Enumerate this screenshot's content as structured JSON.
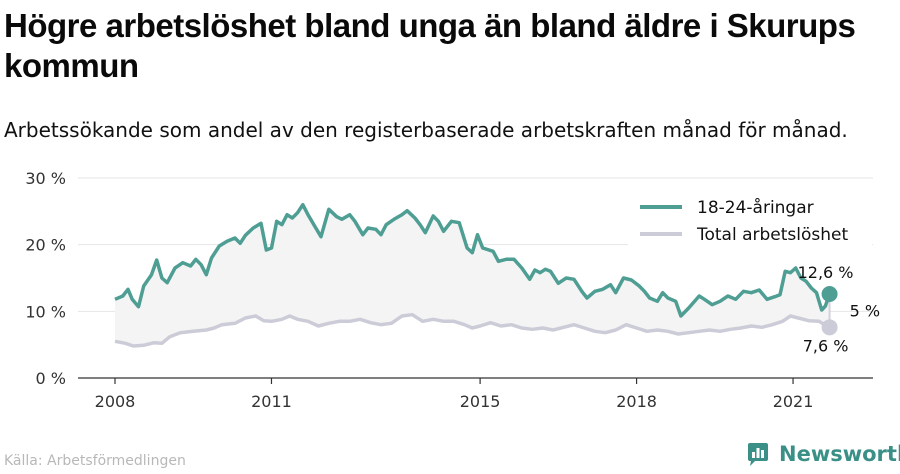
{
  "title": "Högre arbetslöshet bland unga än bland äldre i Skurups kommun",
  "subtitle": "Arbetssökande som andel av den registerbaserade arbetskraften månad för månad.",
  "source": "Källa: Arbetsförmedlingen",
  "brand": "Newsworthy",
  "colors": {
    "youth": "#4f9e94",
    "total": "#ccccd8",
    "gap_fill": "#f4f4f4",
    "grid": "#e6e6e6"
  },
  "icons": {
    "brand": "newsworthy-logo-icon"
  },
  "chart_data": {
    "type": "line",
    "xlim": [
      2008,
      2021.9
    ],
    "ylim": [
      0,
      30
    ],
    "xticks": [
      2008,
      2011,
      2015,
      2018,
      2021
    ],
    "xtick_labels": [
      "2008",
      "2011",
      "2015",
      "2018",
      "2021"
    ],
    "yticks": [
      0,
      10,
      20,
      30
    ],
    "ytick_labels": [
      "0 %",
      "10 %",
      "20 %",
      "30 %"
    ],
    "legend_position": "top-right",
    "grid": "horizontal",
    "series": [
      {
        "name": "18-24-åringar",
        "color": "#4f9e94",
        "points": [
          [
            2008.0,
            11.8
          ],
          [
            2008.15,
            12.3
          ],
          [
            2008.25,
            13.3
          ],
          [
            2008.33,
            11.8
          ],
          [
            2008.45,
            10.7
          ],
          [
            2008.55,
            13.8
          ],
          [
            2008.7,
            15.5
          ],
          [
            2008.8,
            17.7
          ],
          [
            2008.9,
            15.0
          ],
          [
            2009.0,
            14.3
          ],
          [
            2009.15,
            16.5
          ],
          [
            2009.3,
            17.3
          ],
          [
            2009.45,
            16.8
          ],
          [
            2009.55,
            17.8
          ],
          [
            2009.65,
            17.0
          ],
          [
            2009.75,
            15.5
          ],
          [
            2009.85,
            18.0
          ],
          [
            2010.0,
            19.8
          ],
          [
            2010.15,
            20.5
          ],
          [
            2010.3,
            21.0
          ],
          [
            2010.4,
            20.2
          ],
          [
            2010.5,
            21.4
          ],
          [
            2010.65,
            22.5
          ],
          [
            2010.8,
            23.2
          ],
          [
            2010.9,
            19.2
          ],
          [
            2011.0,
            19.5
          ],
          [
            2011.1,
            23.5
          ],
          [
            2011.2,
            23.0
          ],
          [
            2011.3,
            24.5
          ],
          [
            2011.4,
            24.0
          ],
          [
            2011.5,
            24.8
          ],
          [
            2011.6,
            26.0
          ],
          [
            2011.7,
            24.5
          ],
          [
            2011.85,
            22.5
          ],
          [
            2011.95,
            21.2
          ],
          [
            2012.1,
            25.3
          ],
          [
            2012.25,
            24.2
          ],
          [
            2012.35,
            23.8
          ],
          [
            2012.5,
            24.5
          ],
          [
            2012.6,
            23.5
          ],
          [
            2012.75,
            21.5
          ],
          [
            2012.85,
            22.5
          ],
          [
            2013.0,
            22.3
          ],
          [
            2013.1,
            21.5
          ],
          [
            2013.2,
            23.0
          ],
          [
            2013.35,
            23.8
          ],
          [
            2013.5,
            24.5
          ],
          [
            2013.6,
            25.1
          ],
          [
            2013.75,
            24.0
          ],
          [
            2013.85,
            23.0
          ],
          [
            2013.95,
            21.8
          ],
          [
            2014.1,
            24.3
          ],
          [
            2014.2,
            23.5
          ],
          [
            2014.3,
            22.0
          ],
          [
            2014.45,
            23.5
          ],
          [
            2014.6,
            23.3
          ],
          [
            2014.75,
            19.5
          ],
          [
            2014.85,
            18.8
          ],
          [
            2014.95,
            21.5
          ],
          [
            2015.05,
            19.5
          ],
          [
            2015.25,
            19.0
          ],
          [
            2015.35,
            17.5
          ],
          [
            2015.5,
            17.8
          ],
          [
            2015.65,
            17.8
          ],
          [
            2015.8,
            16.5
          ],
          [
            2015.95,
            14.8
          ],
          [
            2016.05,
            16.2
          ],
          [
            2016.15,
            15.8
          ],
          [
            2016.25,
            16.3
          ],
          [
            2016.35,
            16.0
          ],
          [
            2016.5,
            14.2
          ],
          [
            2016.65,
            15.0
          ],
          [
            2016.8,
            14.8
          ],
          [
            2016.95,
            13.0
          ],
          [
            2017.05,
            12.0
          ],
          [
            2017.2,
            13.0
          ],
          [
            2017.35,
            13.3
          ],
          [
            2017.5,
            14.0
          ],
          [
            2017.6,
            12.8
          ],
          [
            2017.75,
            15.0
          ],
          [
            2017.9,
            14.7
          ],
          [
            2018.05,
            13.8
          ],
          [
            2018.15,
            13.0
          ],
          [
            2018.25,
            12.0
          ],
          [
            2018.4,
            11.5
          ],
          [
            2018.5,
            12.8
          ],
          [
            2018.6,
            12.0
          ],
          [
            2018.75,
            11.5
          ],
          [
            2018.85,
            9.3
          ],
          [
            2019.0,
            10.5
          ],
          [
            2019.2,
            12.3
          ],
          [
            2019.3,
            11.8
          ],
          [
            2019.45,
            11.0
          ],
          [
            2019.6,
            11.5
          ],
          [
            2019.75,
            12.3
          ],
          [
            2019.9,
            11.8
          ],
          [
            2020.05,
            13.0
          ],
          [
            2020.2,
            12.8
          ],
          [
            2020.35,
            13.2
          ],
          [
            2020.5,
            11.8
          ],
          [
            2020.65,
            12.2
          ],
          [
            2020.75,
            12.5
          ],
          [
            2020.85,
            16.0
          ],
          [
            2020.95,
            15.8
          ],
          [
            2021.05,
            16.5
          ],
          [
            2021.15,
            15.0
          ],
          [
            2021.25,
            14.5
          ],
          [
            2021.35,
            13.5
          ],
          [
            2021.45,
            12.8
          ],
          [
            2021.55,
            10.2
          ],
          [
            2021.62,
            10.8
          ],
          [
            2021.7,
            12.6
          ]
        ]
      },
      {
        "name": "Total arbetslöshet",
        "color": "#ccccd8",
        "points": [
          [
            2008.0,
            5.5
          ],
          [
            2008.2,
            5.2
          ],
          [
            2008.35,
            4.8
          ],
          [
            2008.55,
            4.9
          ],
          [
            2008.75,
            5.3
          ],
          [
            2008.9,
            5.2
          ],
          [
            2009.05,
            6.2
          ],
          [
            2009.25,
            6.8
          ],
          [
            2009.5,
            7.0
          ],
          [
            2009.75,
            7.2
          ],
          [
            2009.9,
            7.5
          ],
          [
            2010.05,
            8.0
          ],
          [
            2010.3,
            8.2
          ],
          [
            2010.5,
            9.0
          ],
          [
            2010.7,
            9.3
          ],
          [
            2010.85,
            8.6
          ],
          [
            2011.0,
            8.5
          ],
          [
            2011.2,
            8.8
          ],
          [
            2011.35,
            9.3
          ],
          [
            2011.5,
            8.8
          ],
          [
            2011.7,
            8.5
          ],
          [
            2011.9,
            7.8
          ],
          [
            2012.1,
            8.2
          ],
          [
            2012.3,
            8.5
          ],
          [
            2012.5,
            8.5
          ],
          [
            2012.7,
            8.8
          ],
          [
            2012.9,
            8.3
          ],
          [
            2013.1,
            8.0
          ],
          [
            2013.3,
            8.2
          ],
          [
            2013.5,
            9.3
          ],
          [
            2013.7,
            9.5
          ],
          [
            2013.9,
            8.5
          ],
          [
            2014.1,
            8.8
          ],
          [
            2014.3,
            8.5
          ],
          [
            2014.5,
            8.5
          ],
          [
            2014.7,
            8.0
          ],
          [
            2014.85,
            7.5
          ],
          [
            2015.0,
            7.8
          ],
          [
            2015.2,
            8.3
          ],
          [
            2015.4,
            7.8
          ],
          [
            2015.6,
            8.0
          ],
          [
            2015.8,
            7.5
          ],
          [
            2016.0,
            7.3
          ],
          [
            2016.2,
            7.5
          ],
          [
            2016.4,
            7.2
          ],
          [
            2016.6,
            7.6
          ],
          [
            2016.8,
            8.0
          ],
          [
            2017.0,
            7.5
          ],
          [
            2017.2,
            7.0
          ],
          [
            2017.4,
            6.8
          ],
          [
            2017.6,
            7.2
          ],
          [
            2017.8,
            8.0
          ],
          [
            2018.0,
            7.5
          ],
          [
            2018.2,
            7.0
          ],
          [
            2018.4,
            7.2
          ],
          [
            2018.6,
            7.0
          ],
          [
            2018.8,
            6.6
          ],
          [
            2019.0,
            6.8
          ],
          [
            2019.2,
            7.0
          ],
          [
            2019.4,
            7.2
          ],
          [
            2019.6,
            7.0
          ],
          [
            2019.8,
            7.3
          ],
          [
            2020.0,
            7.5
          ],
          [
            2020.2,
            7.8
          ],
          [
            2020.4,
            7.6
          ],
          [
            2020.6,
            8.0
          ],
          [
            2020.8,
            8.5
          ],
          [
            2020.95,
            9.3
          ],
          [
            2021.1,
            9.0
          ],
          [
            2021.3,
            8.6
          ],
          [
            2021.5,
            8.5
          ],
          [
            2021.6,
            8.0
          ],
          [
            2021.7,
            7.6
          ]
        ]
      }
    ],
    "annotations": {
      "youth_last": "12,6 %",
      "gap": "5 %",
      "total_last": "7,6 %"
    }
  }
}
